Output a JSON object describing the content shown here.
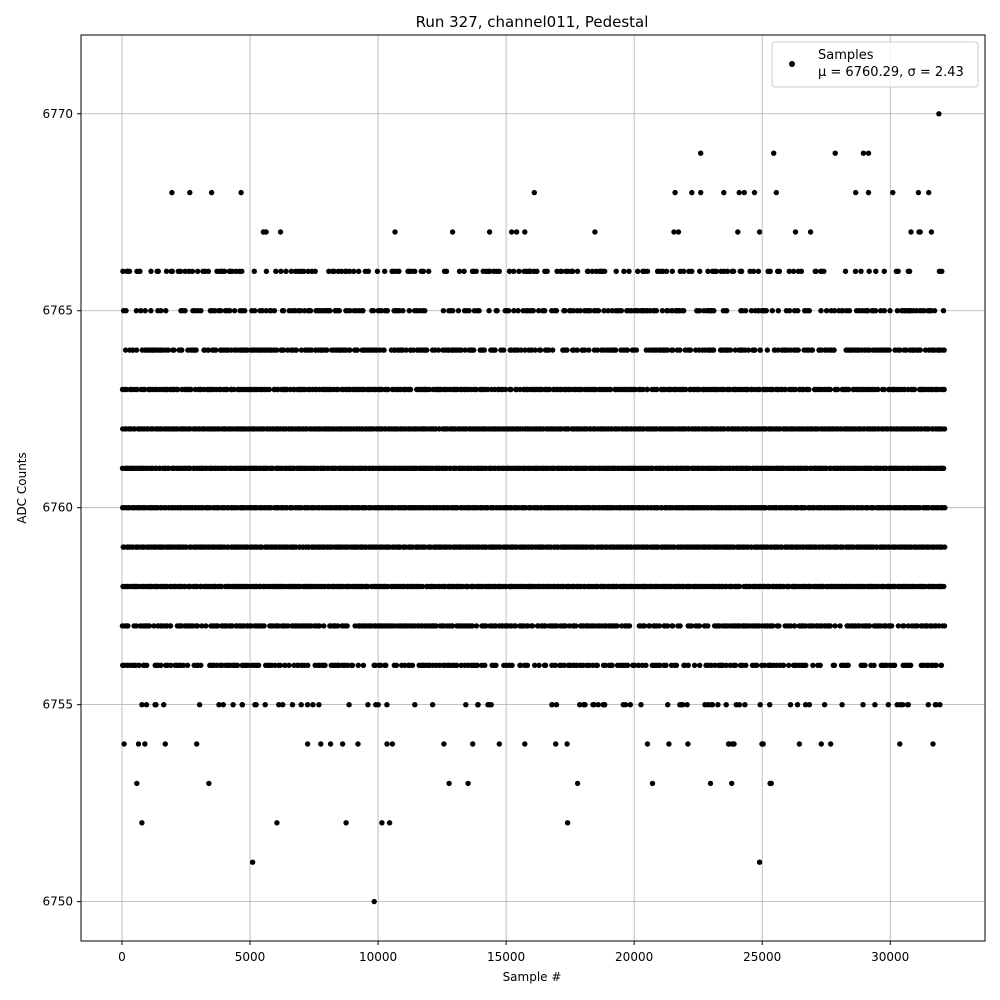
{
  "chart_data": {
    "type": "scatter",
    "title": "Run 327, channel011, Pedestal",
    "xlabel": "Sample #",
    "ylabel": "ADC Counts",
    "xlim": [
      -1600,
      33700
    ],
    "ylim": [
      6749,
      6772
    ],
    "xticks": [
      0,
      5000,
      10000,
      15000,
      20000,
      25000,
      30000
    ],
    "yticks": [
      6750,
      6755,
      6760,
      6765,
      6770
    ],
    "grid": true,
    "legend_position": "top-right",
    "series": [
      {
        "name": "Samples",
        "color": "#000000",
        "marker": "circle",
        "stats_label": "μ = 6760.29, σ = 2.43",
        "mean": 6760.29,
        "sigma": 2.43,
        "n_samples": 32100,
        "dense_levels": [
          6756,
          6757,
          6758,
          6759,
          6760,
          6761,
          6762,
          6763,
          6764,
          6765,
          6766
        ],
        "sparse_levels": [
          6755,
          6754,
          6753,
          6767
        ],
        "notable_points": [
          {
            "x": 9850,
            "y": 6750
          },
          {
            "x": 5100,
            "y": 6751
          },
          {
            "x": 24900,
            "y": 6751
          },
          {
            "x": 780,
            "y": 6752
          },
          {
            "x": 6050,
            "y": 6752
          },
          {
            "x": 8750,
            "y": 6752
          },
          {
            "x": 10150,
            "y": 6752
          },
          {
            "x": 10450,
            "y": 6752
          },
          {
            "x": 17400,
            "y": 6752
          },
          {
            "x": 1950,
            "y": 6768
          },
          {
            "x": 2650,
            "y": 6768
          },
          {
            "x": 3500,
            "y": 6768
          },
          {
            "x": 4650,
            "y": 6768
          },
          {
            "x": 16100,
            "y": 6768
          },
          {
            "x": 21600,
            "y": 6768
          },
          {
            "x": 22250,
            "y": 6768
          },
          {
            "x": 22600,
            "y": 6768
          },
          {
            "x": 23500,
            "y": 6768
          },
          {
            "x": 24100,
            "y": 6768
          },
          {
            "x": 24300,
            "y": 6768
          },
          {
            "x": 24700,
            "y": 6768
          },
          {
            "x": 25550,
            "y": 6768
          },
          {
            "x": 28650,
            "y": 6768
          },
          {
            "x": 29150,
            "y": 6768
          },
          {
            "x": 30100,
            "y": 6768
          },
          {
            "x": 31100,
            "y": 6768
          },
          {
            "x": 31500,
            "y": 6768
          },
          {
            "x": 22600,
            "y": 6769
          },
          {
            "x": 25450,
            "y": 6769
          },
          {
            "x": 27850,
            "y": 6769
          },
          {
            "x": 28950,
            "y": 6769
          },
          {
            "x": 29150,
            "y": 6769
          },
          {
            "x": 31900,
            "y": 6770
          }
        ]
      }
    ]
  }
}
